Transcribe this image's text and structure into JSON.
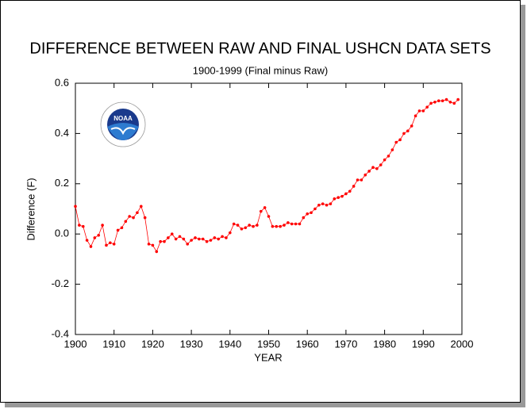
{
  "chart_data": {
    "type": "line",
    "title": "DIFFERENCE BETWEEN RAW AND FINAL USHCN DATA SETS",
    "subtitle": "1900-1999 (Final minus Raw)",
    "x_label": "YEAR",
    "y_label": "Difference (F)",
    "logo_text": "NOAA",
    "color": "#ff0000",
    "x": [
      1900,
      1901,
      1902,
      1903,
      1904,
      1905,
      1906,
      1907,
      1908,
      1909,
      1910,
      1911,
      1912,
      1913,
      1914,
      1915,
      1916,
      1917,
      1918,
      1919,
      1920,
      1921,
      1922,
      1923,
      1924,
      1925,
      1926,
      1927,
      1928,
      1929,
      1930,
      1931,
      1932,
      1933,
      1934,
      1935,
      1936,
      1937,
      1938,
      1939,
      1940,
      1941,
      1942,
      1943,
      1944,
      1945,
      1946,
      1947,
      1948,
      1949,
      1950,
      1951,
      1952,
      1953,
      1954,
      1955,
      1956,
      1957,
      1958,
      1959,
      1960,
      1961,
      1962,
      1963,
      1964,
      1965,
      1966,
      1967,
      1968,
      1969,
      1970,
      1971,
      1972,
      1973,
      1974,
      1975,
      1976,
      1977,
      1978,
      1979,
      1980,
      1981,
      1982,
      1983,
      1984,
      1985,
      1986,
      1987,
      1988,
      1989,
      1990,
      1991,
      1992,
      1993,
      1994,
      1995,
      1996,
      1997,
      1998,
      1999
    ],
    "values": [
      0.11,
      0.035,
      0.03,
      -0.025,
      -0.05,
      -0.015,
      -0.005,
      0.035,
      -0.045,
      -0.035,
      -0.04,
      0.015,
      0.025,
      0.05,
      0.07,
      0.065,
      0.085,
      0.11,
      0.065,
      -0.04,
      -0.045,
      -0.07,
      -0.03,
      -0.03,
      -0.015,
      0.0,
      -0.02,
      -0.01,
      -0.02,
      -0.04,
      -0.025,
      -0.015,
      -0.02,
      -0.02,
      -0.03,
      -0.025,
      -0.015,
      -0.02,
      -0.01,
      -0.015,
      0.005,
      0.04,
      0.035,
      0.02,
      0.025,
      0.035,
      0.03,
      0.035,
      0.09,
      0.105,
      0.07,
      0.03,
      0.03,
      0.03,
      0.035,
      0.045,
      0.04,
      0.04,
      0.04,
      0.065,
      0.08,
      0.085,
      0.1,
      0.115,
      0.12,
      0.115,
      0.12,
      0.14,
      0.145,
      0.15,
      0.16,
      0.17,
      0.19,
      0.215,
      0.215,
      0.235,
      0.25,
      0.265,
      0.26,
      0.275,
      0.295,
      0.31,
      0.335,
      0.365,
      0.375,
      0.4,
      0.41,
      0.43,
      0.47,
      0.49,
      0.49,
      0.505,
      0.52,
      0.525,
      0.53,
      0.53,
      0.535,
      0.525,
      0.52,
      0.535
    ],
    "xlim": [
      1900,
      2000
    ],
    "xticks": [
      1900,
      1910,
      1920,
      1930,
      1940,
      1950,
      1960,
      1970,
      1980,
      1990,
      2000
    ],
    "ylim": [
      -0.4,
      0.6
    ],
    "yticks": [
      -0.4,
      -0.2,
      {
        "value": 0,
        "label": "0.0"
      },
      0.2,
      0.4,
      0.6
    ]
  }
}
